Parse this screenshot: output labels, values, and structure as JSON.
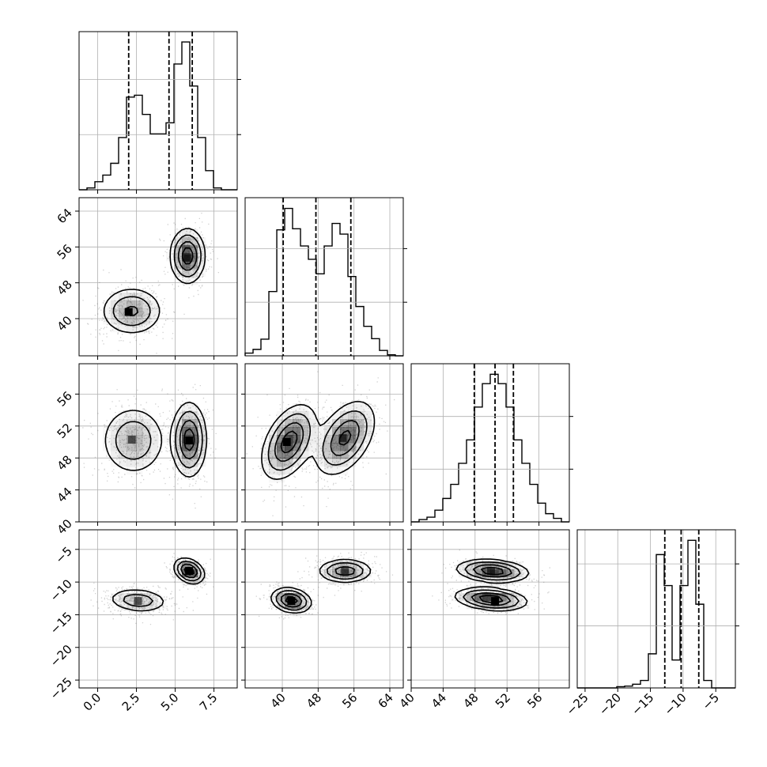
{
  "chart_data": {
    "type": "corner",
    "variables": [
      {
        "id": "p0",
        "ticks": [
          0.0,
          2.5,
          5.0,
          7.5
        ],
        "tick_labels": [
          "0.0",
          "2.5",
          "5.0",
          "7.5"
        ],
        "range": [
          -1.2,
          9.0
        ],
        "quantiles": [
          2.0,
          4.6,
          6.1
        ],
        "hist": {
          "edges": [
            -1.2,
            -0.69,
            -0.18,
            0.33,
            0.84,
            1.35,
            1.86,
            2.37,
            2.88,
            3.39,
            3.9,
            4.41,
            4.92,
            5.43,
            5.94,
            6.45,
            6.96,
            7.47,
            7.98,
            8.49,
            9.0
          ],
          "counts": [
            0.0,
            0.05,
            0.22,
            0.4,
            0.72,
            1.42,
            2.52,
            2.57,
            2.05,
            1.52,
            1.52,
            1.82,
            3.42,
            4.02,
            2.82,
            1.42,
            0.52,
            0.05,
            0.0,
            0.0
          ],
          "ymax": 4.3
        }
      },
      {
        "id": "p1",
        "ticks": [
          40,
          48,
          56,
          64
        ],
        "tick_labels": [
          "40",
          "48",
          "56",
          "64"
        ],
        "range": [
          31.7,
          67.0
        ],
        "quantiles": [
          40.2,
          47.5,
          55.3
        ],
        "hist": {
          "edges": [
            31.7,
            33.47,
            35.23,
            37.0,
            38.77,
            40.53,
            42.29,
            44.06,
            45.82,
            47.59,
            49.35,
            51.12,
            52.88,
            54.65,
            56.41,
            58.18,
            59.94,
            61.7,
            63.47,
            65.23,
            67.0
          ],
          "counts": [
            0.05,
            0.12,
            0.31,
            1.2,
            2.35,
            2.75,
            2.37,
            2.05,
            1.8,
            1.53,
            2.05,
            2.47,
            2.27,
            1.48,
            0.92,
            0.55,
            0.32,
            0.1,
            0.02,
            0.0
          ],
          "ymax": 2.95
        }
      },
      {
        "id": "p2",
        "ticks": [
          40,
          44,
          48,
          52,
          56
        ],
        "tick_labels": [
          "40",
          "44",
          "48",
          "52",
          "56"
        ],
        "range": [
          40.0,
          59.8
        ],
        "quantiles": [
          47.9,
          50.5,
          52.8
        ],
        "hist": {
          "edges": [
            40.0,
            40.99,
            41.98,
            42.97,
            43.96,
            44.95,
            45.94,
            46.93,
            47.92,
            48.91,
            49.9,
            50.89,
            51.88,
            52.87,
            53.86,
            54.85,
            55.84,
            56.83,
            57.82,
            58.81,
            59.8
          ],
          "counts": [
            0.0,
            0.02,
            0.04,
            0.1,
            0.2,
            0.32,
            0.5,
            0.7,
            0.98,
            1.18,
            1.26,
            1.18,
            0.98,
            0.7,
            0.5,
            0.32,
            0.16,
            0.07,
            0.03,
            0.0
          ],
          "ymax": 1.35
        }
      },
      {
        "id": "p3",
        "ticks": [
          -25,
          -20,
          -15,
          -10,
          -5
        ],
        "tick_labels": [
          "−25",
          "−20",
          "−15",
          "−10",
          "−5"
        ],
        "range": [
          -26.2,
          -2.0
        ],
        "quantiles": [
          -12.8,
          -10.3,
          -7.6
        ],
        "hist": {
          "edges": [
            -26.2,
            -24.99,
            -23.78,
            -22.57,
            -21.36,
            -20.15,
            -18.94,
            -17.73,
            -16.52,
            -15.31,
            -14.1,
            -12.89,
            -11.68,
            -10.47,
            -9.26,
            -8.05,
            -6.84,
            -5.63,
            -4.42,
            -3.21,
            -2.0
          ],
          "counts": [
            0.0,
            0.0,
            0.0,
            0.0,
            0.0,
            0.02,
            0.03,
            0.06,
            0.12,
            0.55,
            2.15,
            1.65,
            0.45,
            1.65,
            2.38,
            1.35,
            0.12,
            0.0,
            0.0,
            0.0
          ],
          "ymax": 2.55
        }
      }
    ],
    "pairs": [
      {
        "x": "p0",
        "y": "p1",
        "components": [
          {
            "x": 2.2,
            "y": 41.7,
            "sx": 1.0,
            "sy": 2.7,
            "rho": 0.0,
            "weight": 0.5
          },
          {
            "x": 5.8,
            "y": 54.0,
            "sx": 0.55,
            "sy": 3.0,
            "rho": 0.0,
            "weight": 0.5
          }
        ],
        "mode": [
          2.0,
          41.5
        ],
        "mode2": [
          5.8,
          53.5
        ]
      },
      {
        "x": "p0",
        "y": "p2",
        "components": [
          {
            "x": 2.3,
            "y": 50.2,
            "sx": 1.05,
            "sy": 2.2,
            "rho": 0.0,
            "weight": 0.5
          },
          {
            "x": 5.9,
            "y": 50.3,
            "sx": 0.55,
            "sy": 2.3,
            "rho": 0.0,
            "weight": 0.5
          }
        ],
        "mode": [
          5.9,
          50.2
        ],
        "mode2": [
          2.2,
          50.3
        ]
      },
      {
        "x": "p1",
        "y": "p2",
        "components": [
          {
            "x": 41.5,
            "y": 50.0,
            "sx": 3.0,
            "sy": 2.3,
            "rho": 0.45,
            "weight": 0.5
          },
          {
            "x": 54.0,
            "y": 50.5,
            "sx": 3.3,
            "sy": 2.3,
            "rho": 0.45,
            "weight": 0.5
          }
        ],
        "mode": [
          41.0,
          50.0
        ],
        "mode2": [
          53.5,
          50.5
        ]
      },
      {
        "x": "p0",
        "y": "p3",
        "components": [
          {
            "x": 2.6,
            "y": -12.8,
            "sx": 1.0,
            "sy": 0.95,
            "rho": -0.15,
            "weight": 0.5
          },
          {
            "x": 5.9,
            "y": -8.3,
            "sx": 0.48,
            "sy": 0.95,
            "rho": -0.3,
            "weight": 0.5
          }
        ],
        "mode": [
          5.9,
          -8.3
        ],
        "mode2": [
          2.6,
          -12.9
        ]
      },
      {
        "x": "p1",
        "y": "p3",
        "components": [
          {
            "x": 42.0,
            "y": -12.8,
            "sx": 2.2,
            "sy": 0.95,
            "rho": -0.2,
            "weight": 0.5
          },
          {
            "x": 54.0,
            "y": -8.3,
            "sx": 3.0,
            "sy": 0.9,
            "rho": 0.0,
            "weight": 0.5
          }
        ],
        "mode": [
          42.0,
          -12.9
        ],
        "mode2": [
          54.0,
          -8.3
        ]
      },
      {
        "x": "p2",
        "y": "p3",
        "components": [
          {
            "x": 50.0,
            "y": -12.6,
            "sx": 2.2,
            "sy": 0.85,
            "rho": -0.25,
            "weight": 0.5
          },
          {
            "x": 50.2,
            "y": -8.3,
            "sx": 2.2,
            "sy": 0.85,
            "rho": -0.2,
            "weight": 0.5
          }
        ],
        "mode": [
          50.5,
          -12.9
        ],
        "mode2": [
          50.0,
          -8.3
        ]
      }
    ],
    "contour_levels": [
      0.118,
      0.393,
      0.675,
      0.865
    ],
    "scatter_samples": 900,
    "grid": true,
    "colors": {
      "line": "#000000",
      "grid": "#b0b0b0",
      "points": "#555555",
      "density": "#000000",
      "background": "#ffffff"
    }
  }
}
